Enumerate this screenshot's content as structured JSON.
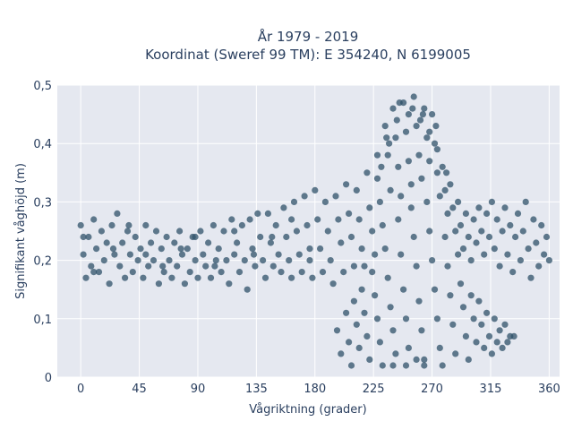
{
  "chart_data": {
    "type": "scatter",
    "title_line1": "År 1979 - 2019",
    "title_line2": "Koordinat (Sweref 99 TM): E 354240, N 6199005",
    "xlabel": "Vågriktning (grader)",
    "ylabel": "Signifikant våghöjd (m)",
    "xlim": [
      -18,
      368
    ],
    "ylim": [
      0,
      0.5
    ],
    "x_ticks": [
      0,
      45,
      90,
      135,
      180,
      225,
      270,
      315,
      360
    ],
    "x_tick_labels": [
      "0",
      "45",
      "90",
      "135",
      "180",
      "225",
      "270",
      "315",
      "360"
    ],
    "y_ticks": [
      0,
      0.1,
      0.2,
      0.3,
      0.4,
      0.5
    ],
    "y_tick_labels": [
      "0",
      "0,1",
      "0,2",
      "0,3",
      "0,4",
      "0,5"
    ],
    "grid": true,
    "legend": "none",
    "marker_color": "#2f5169",
    "background_color": "#e5e8f0",
    "series": [
      {
        "points": [
          [
            0,
            0.26
          ],
          [
            2,
            0.21
          ],
          [
            4,
            0.17
          ],
          [
            6,
            0.24
          ],
          [
            8,
            0.19
          ],
          [
            10,
            0.27
          ],
          [
            12,
            0.22
          ],
          [
            14,
            0.18
          ],
          [
            16,
            0.25
          ],
          [
            18,
            0.2
          ],
          [
            20,
            0.23
          ],
          [
            22,
            0.16
          ],
          [
            24,
            0.26
          ],
          [
            26,
            0.21
          ],
          [
            28,
            0.28
          ],
          [
            30,
            0.19
          ],
          [
            32,
            0.23
          ],
          [
            34,
            0.17
          ],
          [
            36,
            0.25
          ],
          [
            38,
            0.21
          ],
          [
            40,
            0.18
          ],
          [
            42,
            0.24
          ],
          [
            44,
            0.2
          ],
          [
            46,
            0.22
          ],
          [
            48,
            0.17
          ],
          [
            50,
            0.26
          ],
          [
            52,
            0.19
          ],
          [
            54,
            0.23
          ],
          [
            56,
            0.2
          ],
          [
            58,
            0.25
          ],
          [
            60,
            0.16
          ],
          [
            62,
            0.22
          ],
          [
            64,
            0.18
          ],
          [
            66,
            0.24
          ],
          [
            68,
            0.2
          ],
          [
            70,
            0.17
          ],
          [
            72,
            0.23
          ],
          [
            74,
            0.19
          ],
          [
            76,
            0.25
          ],
          [
            78,
            0.21
          ],
          [
            80,
            0.16
          ],
          [
            82,
            0.22
          ],
          [
            84,
            0.18
          ],
          [
            86,
            0.24
          ],
          [
            88,
            0.2
          ],
          [
            90,
            0.17
          ],
          [
            92,
            0.25
          ],
          [
            94,
            0.21
          ],
          [
            96,
            0.19
          ],
          [
            98,
            0.23
          ],
          [
            100,
            0.17
          ],
          [
            102,
            0.26
          ],
          [
            104,
            0.2
          ],
          [
            106,
            0.22
          ],
          [
            108,
            0.18
          ],
          [
            110,
            0.25
          ],
          [
            112,
            0.2
          ],
          [
            114,
            0.16
          ],
          [
            116,
            0.27
          ],
          [
            118,
            0.21
          ],
          [
            120,
            0.23
          ],
          [
            122,
            0.18
          ],
          [
            124,
            0.26
          ],
          [
            126,
            0.2
          ],
          [
            128,
            0.15
          ],
          [
            130,
            0.27
          ],
          [
            132,
            0.22
          ],
          [
            134,
            0.19
          ],
          [
            136,
            0.28
          ],
          [
            138,
            0.24
          ],
          [
            140,
            0.2
          ],
          [
            142,
            0.17
          ],
          [
            144,
            0.28
          ],
          [
            146,
            0.23
          ],
          [
            148,
            0.19
          ],
          [
            150,
            0.26
          ],
          [
            152,
            0.21
          ],
          [
            154,
            0.18
          ],
          [
            156,
            0.29
          ],
          [
            158,
            0.24
          ],
          [
            160,
            0.2
          ],
          [
            162,
            0.17
          ],
          [
            164,
            0.3
          ],
          [
            166,
            0.25
          ],
          [
            168,
            0.21
          ],
          [
            170,
            0.18
          ],
          [
            172,
            0.31
          ],
          [
            174,
            0.26
          ],
          [
            176,
            0.22
          ],
          [
            178,
            0.17
          ],
          [
            180,
            0.32
          ],
          [
            182,
            0.27
          ],
          [
            184,
            0.22
          ],
          [
            186,
            0.18
          ],
          [
            188,
            0.3
          ],
          [
            190,
            0.25
          ],
          [
            192,
            0.2
          ],
          [
            194,
            0.16
          ],
          [
            196,
            0.31
          ],
          [
            198,
            0.27
          ],
          [
            200,
            0.23
          ],
          [
            202,
            0.18
          ],
          [
            204,
            0.33
          ],
          [
            206,
            0.28
          ],
          [
            208,
            0.24
          ],
          [
            210,
            0.19
          ],
          [
            212,
            0.32
          ],
          [
            214,
            0.27
          ],
          [
            216,
            0.22
          ],
          [
            218,
            0.19
          ],
          [
            220,
            0.35
          ],
          [
            222,
            0.29
          ],
          [
            224,
            0.25
          ],
          [
            226,
            0.21
          ],
          [
            228,
            0.34
          ],
          [
            230,
            0.3
          ],
          [
            232,
            0.26
          ],
          [
            234,
            0.43
          ],
          [
            236,
            0.38
          ],
          [
            238,
            0.32
          ],
          [
            240,
            0.46
          ],
          [
            242,
            0.41
          ],
          [
            244,
            0.36
          ],
          [
            246,
            0.31
          ],
          [
            248,
            0.47
          ],
          [
            250,
            0.42
          ],
          [
            252,
            0.37
          ],
          [
            254,
            0.33
          ],
          [
            256,
            0.48
          ],
          [
            258,
            0.43
          ],
          [
            260,
            0.38
          ],
          [
            262,
            0.34
          ],
          [
            264,
            0.46
          ],
          [
            266,
            0.41
          ],
          [
            268,
            0.37
          ],
          [
            270,
            0.45
          ],
          [
            272,
            0.4
          ],
          [
            274,
            0.35
          ],
          [
            276,
            0.31
          ],
          [
            278,
            0.36
          ],
          [
            280,
            0.32
          ],
          [
            282,
            0.28
          ],
          [
            284,
            0.33
          ],
          [
            286,
            0.29
          ],
          [
            288,
            0.25
          ],
          [
            290,
            0.3
          ],
          [
            292,
            0.26
          ],
          [
            294,
            0.22
          ],
          [
            296,
            0.28
          ],
          [
            298,
            0.24
          ],
          [
            300,
            0.2
          ],
          [
            302,
            0.27
          ],
          [
            304,
            0.23
          ],
          [
            306,
            0.29
          ],
          [
            308,
            0.25
          ],
          [
            310,
            0.21
          ],
          [
            312,
            0.28
          ],
          [
            314,
            0.24
          ],
          [
            316,
            0.3
          ],
          [
            318,
            0.22
          ],
          [
            320,
            0.27
          ],
          [
            322,
            0.19
          ],
          [
            324,
            0.25
          ],
          [
            326,
            0.29
          ],
          [
            328,
            0.21
          ],
          [
            330,
            0.26
          ],
          [
            332,
            0.18
          ],
          [
            334,
            0.24
          ],
          [
            336,
            0.28
          ],
          [
            338,
            0.2
          ],
          [
            340,
            0.25
          ],
          [
            342,
            0.3
          ],
          [
            344,
            0.22
          ],
          [
            346,
            0.17
          ],
          [
            348,
            0.27
          ],
          [
            350,
            0.23
          ],
          [
            352,
            0.19
          ],
          [
            354,
            0.26
          ],
          [
            356,
            0.21
          ],
          [
            358,
            0.24
          ],
          [
            360,
            0.2
          ],
          [
            2,
            0.24
          ],
          [
            10,
            0.18
          ],
          [
            25,
            0.22
          ],
          [
            37,
            0.26
          ],
          [
            50,
            0.21
          ],
          [
            63,
            0.19
          ],
          [
            77,
            0.22
          ],
          [
            88,
            0.24
          ],
          [
            103,
            0.19
          ],
          [
            118,
            0.25
          ],
          [
            133,
            0.21
          ],
          [
            147,
            0.24
          ],
          [
            162,
            0.27
          ],
          [
            176,
            0.2
          ],
          [
            197,
            0.08
          ],
          [
            200,
            0.04
          ],
          [
            204,
            0.11
          ],
          [
            206,
            0.06
          ],
          [
            208,
            0.02
          ],
          [
            210,
            0.13
          ],
          [
            212,
            0.09
          ],
          [
            214,
            0.05
          ],
          [
            216,
            0.15
          ],
          [
            218,
            0.11
          ],
          [
            220,
            0.07
          ],
          [
            222,
            0.03
          ],
          [
            224,
            0.18
          ],
          [
            226,
            0.14
          ],
          [
            228,
            0.1
          ],
          [
            230,
            0.06
          ],
          [
            232,
            0.02
          ],
          [
            234,
            0.22
          ],
          [
            236,
            0.17
          ],
          [
            238,
            0.12
          ],
          [
            240,
            0.08
          ],
          [
            242,
            0.04
          ],
          [
            244,
            0.27
          ],
          [
            246,
            0.21
          ],
          [
            248,
            0.15
          ],
          [
            250,
            0.1
          ],
          [
            252,
            0.05
          ],
          [
            254,
            0.29
          ],
          [
            256,
            0.24
          ],
          [
            258,
            0.19
          ],
          [
            260,
            0.13
          ],
          [
            262,
            0.08
          ],
          [
            264,
            0.03
          ],
          [
            266,
            0.3
          ],
          [
            268,
            0.25
          ],
          [
            270,
            0.2
          ],
          [
            272,
            0.15
          ],
          [
            274,
            0.1
          ],
          [
            276,
            0.05
          ],
          [
            278,
            0.02
          ],
          [
            280,
            0.24
          ],
          [
            282,
            0.19
          ],
          [
            284,
            0.14
          ],
          [
            286,
            0.09
          ],
          [
            288,
            0.04
          ],
          [
            290,
            0.21
          ],
          [
            292,
            0.16
          ],
          [
            294,
            0.12
          ],
          [
            296,
            0.07
          ],
          [
            298,
            0.03
          ],
          [
            300,
            0.14
          ],
          [
            302,
            0.1
          ],
          [
            304,
            0.06
          ],
          [
            306,
            0.13
          ],
          [
            308,
            0.09
          ],
          [
            310,
            0.05
          ],
          [
            312,
            0.11
          ],
          [
            314,
            0.07
          ],
          [
            316,
            0.04
          ],
          [
            318,
            0.1
          ],
          [
            320,
            0.06
          ],
          [
            322,
            0.08
          ],
          [
            324,
            0.05
          ],
          [
            326,
            0.09
          ],
          [
            328,
            0.06
          ],
          [
            330,
            0.07
          ],
          [
            333,
            0.07
          ],
          [
            240,
            0.02
          ],
          [
            250,
            0.02
          ],
          [
            258,
            0.03
          ],
          [
            264,
            0.02
          ],
          [
            231,
            0.36
          ],
          [
            237,
            0.4
          ],
          [
            243,
            0.44
          ],
          [
            252,
            0.45
          ],
          [
            261,
            0.44
          ],
          [
            268,
            0.42
          ],
          [
            274,
            0.39
          ],
          [
            281,
            0.35
          ],
          [
            228,
            0.38
          ],
          [
            235,
            0.41
          ],
          [
            245,
            0.47
          ],
          [
            255,
            0.46
          ],
          [
            263,
            0.45
          ],
          [
            273,
            0.43
          ]
        ]
      }
    ]
  }
}
